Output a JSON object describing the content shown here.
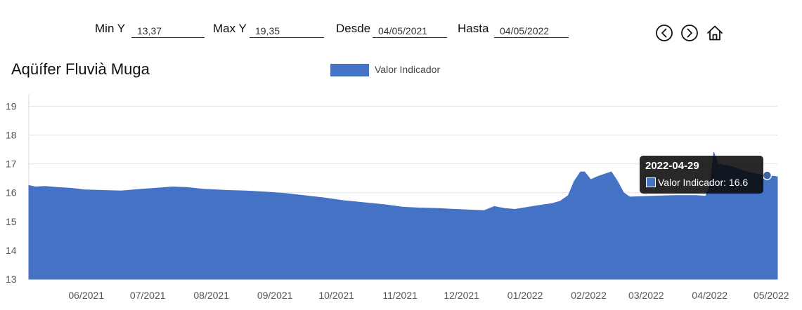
{
  "controls": {
    "min_y_label": "Min Y",
    "min_y_value": "13,37",
    "max_y_label": "Max Y",
    "max_y_value": "19,35",
    "desde_label": "Desde",
    "desde_value": "04/05/2021",
    "hasta_label": "Hasta",
    "hasta_value": "04/05/2022"
  },
  "nav": {
    "prev_icon": "circle-chevron-left-icon",
    "next_icon": "circle-chevron-right-icon",
    "home_icon": "home-icon"
  },
  "tooltip": {
    "date": "2022-04-29",
    "text": "Valor Indicador: 16.6"
  },
  "chart_data": {
    "type": "area",
    "title": "Aqüífer Fluvià Muga",
    "series": [
      {
        "name": "Valor Indicador",
        "color": "#4472c4",
        "points": [
          [
            "2021-05-04",
            16.25
          ],
          [
            "2021-05-07",
            16.2
          ],
          [
            "2021-05-12",
            16.22
          ],
          [
            "2021-05-18",
            16.18
          ],
          [
            "2021-05-25",
            16.15
          ],
          [
            "2021-05-31",
            16.1
          ],
          [
            "2021-06-08",
            16.08
          ],
          [
            "2021-06-18",
            16.06
          ],
          [
            "2021-06-28",
            16.12
          ],
          [
            "2021-07-06",
            16.16
          ],
          [
            "2021-07-13",
            16.2
          ],
          [
            "2021-07-20",
            16.18
          ],
          [
            "2021-07-28",
            16.12
          ],
          [
            "2021-08-08",
            16.08
          ],
          [
            "2021-08-18",
            16.06
          ],
          [
            "2021-08-28",
            16.02
          ],
          [
            "2021-09-05",
            15.98
          ],
          [
            "2021-09-15",
            15.9
          ],
          [
            "2021-09-25",
            15.82
          ],
          [
            "2021-10-05",
            15.72
          ],
          [
            "2021-10-15",
            15.65
          ],
          [
            "2021-10-25",
            15.58
          ],
          [
            "2021-11-02",
            15.5
          ],
          [
            "2021-11-10",
            15.47
          ],
          [
            "2021-11-20",
            15.45
          ],
          [
            "2021-11-28",
            15.42
          ],
          [
            "2021-12-05",
            15.4
          ],
          [
            "2021-12-12",
            15.38
          ],
          [
            "2021-12-17",
            15.52
          ],
          [
            "2021-12-22",
            15.45
          ],
          [
            "2021-12-27",
            15.42
          ],
          [
            "2022-01-01",
            15.48
          ],
          [
            "2022-01-07",
            15.55
          ],
          [
            "2022-01-14",
            15.62
          ],
          [
            "2022-01-18",
            15.7
          ],
          [
            "2022-01-22",
            15.9
          ],
          [
            "2022-01-25",
            16.4
          ],
          [
            "2022-01-28",
            16.72
          ],
          [
            "2022-01-30",
            16.72
          ],
          [
            "2022-02-02",
            16.45
          ],
          [
            "2022-02-05",
            16.55
          ],
          [
            "2022-02-09",
            16.65
          ],
          [
            "2022-02-12",
            16.72
          ],
          [
            "2022-02-15",
            16.4
          ],
          [
            "2022-02-18",
            16.0
          ],
          [
            "2022-02-21",
            15.85
          ],
          [
            "2022-03-05",
            15.88
          ],
          [
            "2022-03-15",
            15.9
          ],
          [
            "2022-03-25",
            15.9
          ],
          [
            "2022-03-30",
            15.88
          ],
          [
            "2022-04-01",
            16.2
          ],
          [
            "2022-04-03",
            17.4
          ],
          [
            "2022-04-05",
            17.0
          ],
          [
            "2022-04-12",
            16.9
          ],
          [
            "2022-04-20",
            16.7
          ],
          [
            "2022-04-26",
            16.62
          ],
          [
            "2022-04-29",
            16.6
          ],
          [
            "2022-05-04",
            16.55
          ]
        ]
      }
    ],
    "xlabel": "",
    "ylabel": "",
    "y_ticks": [
      13,
      14,
      15,
      16,
      17,
      18,
      19
    ],
    "ylim": [
      13,
      19.35
    ],
    "x_ticks": [
      [
        "2021-06-01",
        "06/2021"
      ],
      [
        "2021-07-01",
        "07/2021"
      ],
      [
        "2021-08-01",
        "08/2021"
      ],
      [
        "2021-09-01",
        "09/2021"
      ],
      [
        "2021-10-01",
        "10/2021"
      ],
      [
        "2021-11-01",
        "11/2021"
      ],
      [
        "2021-12-01",
        "12/2021"
      ],
      [
        "2022-01-01",
        "01/2022"
      ],
      [
        "2022-02-01",
        "02/2022"
      ],
      [
        "2022-03-01",
        "03/2022"
      ],
      [
        "2022-04-01",
        "04/2022"
      ],
      [
        "2022-05-01",
        "05/2022"
      ]
    ],
    "xlim": [
      "2021-05-04",
      "2022-05-04"
    ],
    "grid": true,
    "legend": "top-center",
    "highlight": {
      "date": "2022-04-29",
      "value": 16.6
    }
  }
}
